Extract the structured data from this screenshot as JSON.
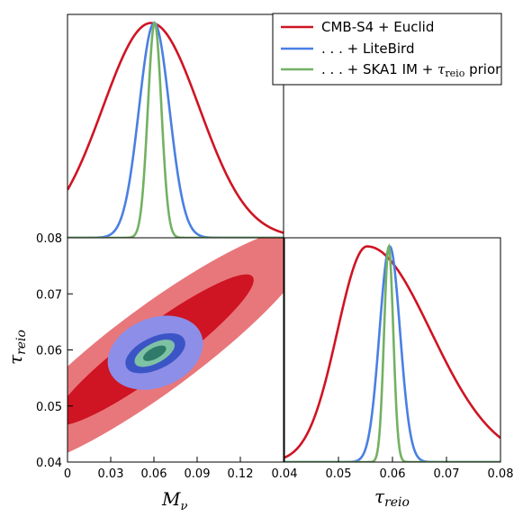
{
  "chart_data": [
    {
      "panel": "top-left",
      "type": "line",
      "title": "",
      "x_param": "M_nu",
      "xlim": [
        0,
        0.15
      ],
      "ylim": [
        0,
        1
      ],
      "xticks": [],
      "yticks": [],
      "grid": false,
      "series": [
        {
          "key": "cmb",
          "mean": 0.058,
          "sigma": 0.0335
        },
        {
          "key": "lite",
          "mean": 0.0602,
          "sigma": 0.0105
        },
        {
          "key": "ska",
          "mean": 0.0605,
          "sigma": 0.0047
        }
      ]
    },
    {
      "panel": "bottom-left",
      "type": "contour",
      "xlabel": "M",
      "xlabel_sub": "ν",
      "ylabel": "τ",
      "ylabel_sub": "reio",
      "xlim": [
        0,
        0.15
      ],
      "ylim": [
        0.04,
        0.08
      ],
      "xticks": [
        {
          "v": 0,
          "label": "0"
        },
        {
          "v": 0.03,
          "label": "0.03"
        },
        {
          "v": 0.06,
          "label": "0.06"
        },
        {
          "v": 0.09,
          "label": "0.09"
        },
        {
          "v": 0.12,
          "label": "0.12"
        }
      ],
      "yticks": [
        {
          "v": 0.04,
          "label": "0.04"
        },
        {
          "v": 0.05,
          "label": "0.05"
        },
        {
          "v": 0.06,
          "label": "0.06"
        },
        {
          "v": 0.07,
          "label": "0.07"
        },
        {
          "v": 0.08,
          "label": "0.08"
        }
      ],
      "grid": false,
      "ellipses": [
        {
          "key": "cmb_2sigma",
          "center": [
            0.062,
            0.0603
          ],
          "major_half_length": 0.135,
          "minor_half_width": 0.0075,
          "angle_deg": 36.5,
          "color": "#e8777b"
        },
        {
          "key": "cmb_1sigma",
          "center": [
            0.06,
            0.06
          ],
          "major_half_length": 0.085,
          "minor_half_width": 0.004,
          "angle_deg": 36.5,
          "color": "#cf1423"
        },
        {
          "key": "lite_2sigma",
          "center": [
            0.061,
            0.0595
          ],
          "major_half_length": 0.034,
          "minor_half_width": 0.0061,
          "angle_deg": 22,
          "color": "#8d8ee7"
        },
        {
          "key": "lite_1sigma",
          "center": [
            0.061,
            0.0594
          ],
          "major_half_length": 0.022,
          "minor_half_width": 0.0028,
          "angle_deg": 25,
          "color": "#3b55c6"
        },
        {
          "key": "ska_2sigma",
          "center": [
            0.0605,
            0.0594
          ],
          "major_half_length": 0.015,
          "minor_half_width": 0.0017,
          "angle_deg": 28,
          "color": "#7ec1a4"
        },
        {
          "key": "ska_1sigma",
          "center": [
            0.0605,
            0.0594
          ],
          "major_half_length": 0.0085,
          "minor_half_width": 0.0009,
          "angle_deg": 28,
          "color": "#2f7a68"
        }
      ]
    },
    {
      "panel": "bottom-right",
      "type": "line",
      "xlabel": "τ",
      "xlabel_sub": "reio",
      "xlim": [
        0.04,
        0.08
      ],
      "ylim": [
        0,
        1
      ],
      "xticks": [
        {
          "v": 0.04,
          "label": "0.04"
        },
        {
          "v": 0.05,
          "label": "0.05"
        },
        {
          "v": 0.06,
          "label": "0.06"
        },
        {
          "v": 0.07,
          "label": "0.07"
        },
        {
          "v": 0.08,
          "label": "0.08"
        }
      ],
      "yticks": [],
      "grid": false,
      "series": [
        {
          "key": "cmb",
          "type": "skewed",
          "peak": 0.0553,
          "sigma_left": 0.0055,
          "sigma_right": 0.0118
        },
        {
          "key": "lite",
          "mean": 0.0595,
          "sigma": 0.0019
        },
        {
          "key": "ska",
          "mean": 0.0593,
          "sigma": 0.00085
        }
      ]
    }
  ],
  "legend": {
    "placement": "top-right",
    "entries": [
      {
        "key": "cmb",
        "label": "CMB-S4 + Euclid",
        "color": "#cf1423"
      },
      {
        "key": "lite",
        "label": ". . . + LiteBird",
        "color": "#4a7fe4"
      },
      {
        "key": "ska",
        "label": ". . . + SKA1 IM + ",
        "label_math": "τ",
        "label_math_sub": "reio",
        "label_tail": " prior",
        "color": "#73b163"
      }
    ]
  },
  "colors": {
    "cmb_line": "#cf1423",
    "lite_line": "#4a7fe4",
    "ska_line": "#73b163"
  }
}
